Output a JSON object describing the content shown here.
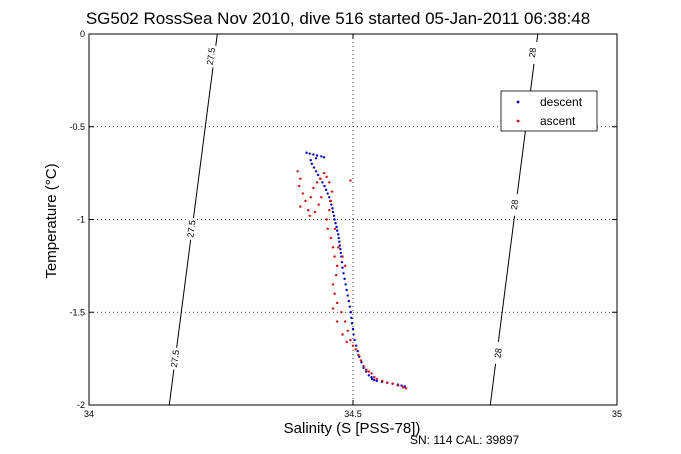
{
  "chart_data": {
    "type": "scatter",
    "title": "SG502 RossSea Nov 2010, dive 516 started 05-Jan-2011 06:38:48",
    "xlabel": "Salinity (S [PSS-78])",
    "ylabel": "Temperature (°C)",
    "xlim": [
      34,
      35
    ],
    "ylim": [
      -2,
      0
    ],
    "x_ticks": [
      "34",
      "34.5",
      "35"
    ],
    "y_ticks": [
      "0",
      "-0.5",
      "-1",
      "-1.5",
      "-2"
    ],
    "grid": "dotted at tick marks",
    "legend": {
      "placement": "top-right",
      "entries": [
        "descent",
        "ascent"
      ]
    },
    "series": [
      {
        "name": "descent",
        "color": "#0000ff",
        "marker": "point",
        "points": [
          [
            34.412,
            -0.64
          ],
          [
            34.418,
            -0.645
          ],
          [
            34.425,
            -0.65
          ],
          [
            34.432,
            -0.655
          ],
          [
            34.44,
            -0.66
          ],
          [
            34.445,
            -0.665
          ],
          [
            34.43,
            -0.67
          ],
          [
            34.42,
            -0.68
          ],
          [
            34.422,
            -0.7
          ],
          [
            34.426,
            -0.72
          ],
          [
            34.43,
            -0.74
          ],
          [
            34.434,
            -0.76
          ],
          [
            34.438,
            -0.78
          ],
          [
            34.442,
            -0.8
          ],
          [
            34.446,
            -0.82
          ],
          [
            34.449,
            -0.84
          ],
          [
            34.452,
            -0.86
          ],
          [
            34.455,
            -0.88
          ],
          [
            34.457,
            -0.9
          ],
          [
            34.459,
            -0.92
          ],
          [
            34.461,
            -0.94
          ],
          [
            34.462,
            -0.96
          ],
          [
            34.464,
            -0.98
          ],
          [
            34.465,
            -1.0
          ],
          [
            34.467,
            -1.02
          ],
          [
            34.469,
            -1.04
          ],
          [
            34.47,
            -1.06
          ],
          [
            34.472,
            -1.08
          ],
          [
            34.473,
            -1.1
          ],
          [
            34.474,
            -1.12
          ],
          [
            34.475,
            -1.14
          ],
          [
            34.476,
            -1.16
          ],
          [
            34.477,
            -1.18
          ],
          [
            34.478,
            -1.2
          ],
          [
            34.479,
            -1.23
          ],
          [
            34.48,
            -1.26
          ],
          [
            34.482,
            -1.29
          ],
          [
            34.484,
            -1.32
          ],
          [
            34.486,
            -1.35
          ],
          [
            34.488,
            -1.38
          ],
          [
            34.49,
            -1.41
          ],
          [
            34.492,
            -1.44
          ],
          [
            34.494,
            -1.47
          ],
          [
            34.496,
            -1.5
          ],
          [
            34.497,
            -1.53
          ],
          [
            34.498,
            -1.56
          ],
          [
            34.5,
            -1.59
          ],
          [
            34.501,
            -1.62
          ],
          [
            34.503,
            -1.65
          ],
          [
            34.506,
            -1.68
          ],
          [
            34.509,
            -1.71
          ],
          [
            34.512,
            -1.74
          ],
          [
            34.516,
            -1.77
          ],
          [
            34.52,
            -1.8
          ],
          [
            34.525,
            -1.82
          ],
          [
            34.53,
            -1.84
          ],
          [
            34.536,
            -1.86
          ],
          [
            34.545,
            -1.87
          ],
          [
            34.555,
            -1.875
          ],
          [
            34.565,
            -1.88
          ],
          [
            34.575,
            -1.885
          ],
          [
            34.585,
            -1.89
          ],
          [
            34.592,
            -1.895
          ],
          [
            34.598,
            -1.9
          ],
          [
            34.535,
            -1.85
          ],
          [
            34.54,
            -1.865
          ]
        ]
      },
      {
        "name": "ascent",
        "color": "#ff0000",
        "marker": "point",
        "points": [
          [
            34.395,
            -0.74
          ],
          [
            34.4,
            -0.78
          ],
          [
            34.398,
            -0.82
          ],
          [
            34.405,
            -0.86
          ],
          [
            34.41,
            -0.9
          ],
          [
            34.4,
            -0.93
          ],
          [
            34.415,
            -0.95
          ],
          [
            34.42,
            -0.88
          ],
          [
            34.425,
            -0.83
          ],
          [
            34.432,
            -0.8
          ],
          [
            34.438,
            -0.78
          ],
          [
            34.445,
            -0.75
          ],
          [
            34.45,
            -0.77
          ],
          [
            34.455,
            -0.8
          ],
          [
            34.46,
            -0.85
          ],
          [
            34.458,
            -0.9
          ],
          [
            34.455,
            -0.95
          ],
          [
            34.45,
            -1.0
          ],
          [
            34.452,
            -1.05
          ],
          [
            34.458,
            -1.1
          ],
          [
            34.462,
            -1.15
          ],
          [
            34.465,
            -1.2
          ],
          [
            34.47,
            -1.25
          ],
          [
            34.468,
            -1.3
          ],
          [
            34.462,
            -1.35
          ],
          [
            34.465,
            -1.4
          ],
          [
            34.47,
            -1.45
          ],
          [
            34.478,
            -1.5
          ],
          [
            34.485,
            -1.55
          ],
          [
            34.49,
            -1.6
          ],
          [
            34.495,
            -1.65
          ],
          [
            34.5,
            -1.68
          ],
          [
            34.505,
            -1.7
          ],
          [
            34.51,
            -1.73
          ],
          [
            34.515,
            -1.76
          ],
          [
            34.52,
            -1.79
          ],
          [
            34.525,
            -1.81
          ],
          [
            34.535,
            -1.83
          ],
          [
            34.545,
            -1.86
          ],
          [
            34.555,
            -1.87
          ],
          [
            34.565,
            -1.88
          ],
          [
            34.575,
            -1.885
          ],
          [
            34.585,
            -1.895
          ],
          [
            34.595,
            -1.905
          ],
          [
            34.6,
            -1.91
          ],
          [
            34.54,
            -1.85
          ],
          [
            34.53,
            -1.82
          ],
          [
            34.48,
            -1.2
          ],
          [
            34.485,
            -1.25
          ],
          [
            34.472,
            -1.15
          ],
          [
            34.466,
            -1.05
          ],
          [
            34.44,
            -0.88
          ],
          [
            34.435,
            -0.92
          ],
          [
            34.428,
            -0.96
          ],
          [
            34.418,
            -0.98
          ],
          [
            34.495,
            -0.79
          ],
          [
            34.462,
            -1.48
          ],
          [
            34.47,
            -1.55
          ],
          [
            34.48,
            -1.62
          ],
          [
            34.488,
            -1.66
          ]
        ]
      }
    ],
    "density_contours": [
      {
        "label": "27.5",
        "points": [
          [
            34.152,
            -2.0
          ],
          [
            34.243,
            0.0
          ]
        ],
        "label_positions": [
          [
            34.163,
            -1.75
          ],
          [
            34.194,
            -1.05
          ],
          [
            34.231,
            -0.12
          ]
        ]
      },
      {
        "label": "28",
        "points": [
          [
            34.76,
            -2.0
          ],
          [
            34.85,
            0.0
          ]
        ],
        "label_positions": [
          [
            34.775,
            -1.72
          ],
          [
            34.806,
            -0.92
          ],
          [
            34.84,
            -0.1
          ]
        ]
      }
    ],
    "footer": "SN: 114  CAL: 39897"
  }
}
